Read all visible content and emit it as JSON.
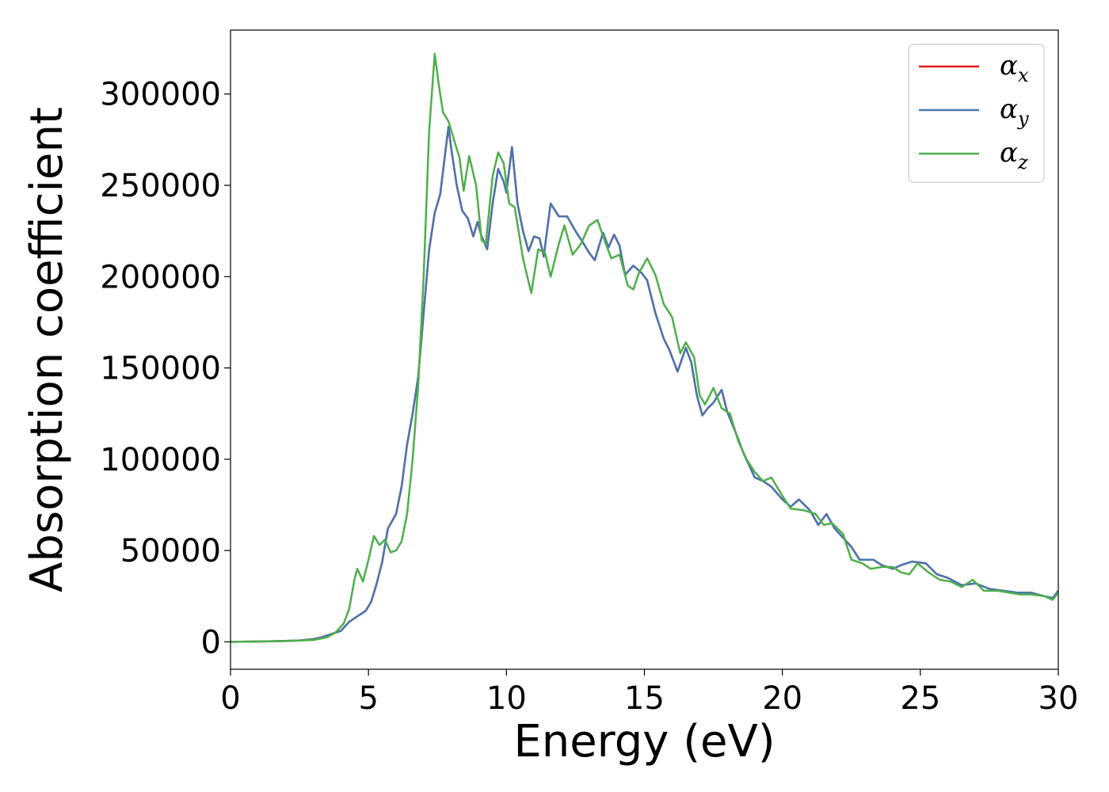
{
  "chart_data": {
    "type": "line",
    "title": "",
    "xlabel": "Energy (eV)",
    "ylabel": "Absorption coefficient",
    "xlim": [
      0,
      30
    ],
    "ylim": [
      -15000,
      335000
    ],
    "xticks": [
      0,
      5,
      10,
      15,
      20,
      25,
      30
    ],
    "yticks": [
      0,
      50000,
      100000,
      150000,
      200000,
      250000,
      300000
    ],
    "grid": false,
    "legend_position": "top-right",
    "series": [
      {
        "name": "α_x",
        "legend_base": "α",
        "legend_sub": "x",
        "color": "#e41a1c",
        "points": [
          [
            0,
            0
          ],
          [
            1,
            200
          ],
          [
            2,
            500
          ],
          [
            2.5,
            800
          ],
          [
            3,
            1500
          ],
          [
            3.3,
            2500
          ],
          [
            3.6,
            4000
          ],
          [
            4,
            6000
          ],
          [
            4.3,
            11000
          ],
          [
            4.6,
            14000
          ],
          [
            4.9,
            17000
          ],
          [
            5.1,
            22000
          ],
          [
            5.3,
            32000
          ],
          [
            5.5,
            44000
          ],
          [
            5.7,
            62000
          ],
          [
            6.0,
            70000
          ],
          [
            6.2,
            85000
          ],
          [
            6.4,
            108000
          ],
          [
            6.6,
            125000
          ],
          [
            6.8,
            145000
          ],
          [
            7.0,
            180000
          ],
          [
            7.2,
            215000
          ],
          [
            7.4,
            235000
          ],
          [
            7.6,
            245000
          ],
          [
            7.8,
            270000
          ],
          [
            7.9,
            282000
          ],
          [
            8.0,
            270000
          ],
          [
            8.2,
            250000
          ],
          [
            8.4,
            236000
          ],
          [
            8.6,
            232000
          ],
          [
            8.8,
            222000
          ],
          [
            8.95,
            230000
          ],
          [
            9.1,
            222000
          ],
          [
            9.3,
            215000
          ],
          [
            9.5,
            240000
          ],
          [
            9.7,
            259000
          ],
          [
            9.9,
            252000
          ],
          [
            10.0,
            246000
          ],
          [
            10.2,
            271000
          ],
          [
            10.4,
            240000
          ],
          [
            10.6,
            225000
          ],
          [
            10.8,
            214000
          ],
          [
            11.0,
            222000
          ],
          [
            11.2,
            221000
          ],
          [
            11.35,
            211000
          ],
          [
            11.6,
            240000
          ],
          [
            11.9,
            233000
          ],
          [
            12.2,
            233000
          ],
          [
            12.5,
            225000
          ],
          [
            12.8,
            218000
          ],
          [
            13.0,
            213000
          ],
          [
            13.2,
            209000
          ],
          [
            13.5,
            224000
          ],
          [
            13.7,
            216000
          ],
          [
            13.9,
            223000
          ],
          [
            14.1,
            217000
          ],
          [
            14.3,
            201000
          ],
          [
            14.6,
            206000
          ],
          [
            14.9,
            202000
          ],
          [
            15.1,
            198000
          ],
          [
            15.4,
            180000
          ],
          [
            15.7,
            166000
          ],
          [
            15.9,
            160000
          ],
          [
            16.2,
            148000
          ],
          [
            16.5,
            161000
          ],
          [
            16.7,
            153000
          ],
          [
            16.9,
            135000
          ],
          [
            17.1,
            124000
          ],
          [
            17.3,
            128000
          ],
          [
            17.5,
            131000
          ],
          [
            17.8,
            138000
          ],
          [
            18.0,
            126000
          ],
          [
            18.3,
            115000
          ],
          [
            18.6,
            103000
          ],
          [
            19.0,
            90000
          ],
          [
            19.3,
            88000
          ],
          [
            19.6,
            85000
          ],
          [
            20.0,
            78000
          ],
          [
            20.3,
            74000
          ],
          [
            20.6,
            78000
          ],
          [
            21.0,
            72000
          ],
          [
            21.3,
            64000
          ],
          [
            21.6,
            70000
          ],
          [
            21.9,
            62000
          ],
          [
            22.2,
            57000
          ],
          [
            22.5,
            52000
          ],
          [
            22.8,
            45000
          ],
          [
            23.3,
            45000
          ],
          [
            23.6,
            42000
          ],
          [
            24.0,
            40000
          ],
          [
            24.3,
            42000
          ],
          [
            24.7,
            44000
          ],
          [
            25.2,
            43000
          ],
          [
            25.6,
            37000
          ],
          [
            26.0,
            35000
          ],
          [
            26.5,
            31000
          ],
          [
            27.0,
            32000
          ],
          [
            27.5,
            29000
          ],
          [
            28.0,
            28000
          ],
          [
            28.5,
            27000
          ],
          [
            29.0,
            27000
          ],
          [
            29.5,
            25000
          ],
          [
            29.8,
            24000
          ],
          [
            30,
            28000
          ]
        ]
      },
      {
        "name": "α_y",
        "legend_base": "α",
        "legend_sub": "y",
        "color": "#4876b0",
        "points": [
          [
            0,
            0
          ],
          [
            1,
            200
          ],
          [
            2,
            500
          ],
          [
            2.5,
            800
          ],
          [
            3,
            1500
          ],
          [
            3.3,
            2500
          ],
          [
            3.6,
            4000
          ],
          [
            4,
            6000
          ],
          [
            4.3,
            11000
          ],
          [
            4.6,
            14000
          ],
          [
            4.9,
            17000
          ],
          [
            5.1,
            22000
          ],
          [
            5.3,
            32000
          ],
          [
            5.5,
            44000
          ],
          [
            5.7,
            62000
          ],
          [
            6.0,
            70000
          ],
          [
            6.2,
            85000
          ],
          [
            6.4,
            108000
          ],
          [
            6.6,
            125000
          ],
          [
            6.8,
            145000
          ],
          [
            7.0,
            180000
          ],
          [
            7.2,
            215000
          ],
          [
            7.4,
            235000
          ],
          [
            7.6,
            245000
          ],
          [
            7.8,
            270000
          ],
          [
            7.9,
            282000
          ],
          [
            8.0,
            270000
          ],
          [
            8.2,
            250000
          ],
          [
            8.4,
            236000
          ],
          [
            8.6,
            232000
          ],
          [
            8.8,
            222000
          ],
          [
            8.95,
            230000
          ],
          [
            9.1,
            222000
          ],
          [
            9.3,
            215000
          ],
          [
            9.5,
            240000
          ],
          [
            9.7,
            259000
          ],
          [
            9.9,
            252000
          ],
          [
            10.0,
            246000
          ],
          [
            10.2,
            271000
          ],
          [
            10.4,
            240000
          ],
          [
            10.6,
            225000
          ],
          [
            10.8,
            214000
          ],
          [
            11.0,
            222000
          ],
          [
            11.2,
            221000
          ],
          [
            11.35,
            211000
          ],
          [
            11.6,
            240000
          ],
          [
            11.9,
            233000
          ],
          [
            12.2,
            233000
          ],
          [
            12.5,
            225000
          ],
          [
            12.8,
            218000
          ],
          [
            13.0,
            213000
          ],
          [
            13.2,
            209000
          ],
          [
            13.5,
            224000
          ],
          [
            13.7,
            216000
          ],
          [
            13.9,
            223000
          ],
          [
            14.1,
            217000
          ],
          [
            14.3,
            201000
          ],
          [
            14.6,
            206000
          ],
          [
            14.9,
            202000
          ],
          [
            15.1,
            198000
          ],
          [
            15.4,
            180000
          ],
          [
            15.7,
            166000
          ],
          [
            15.9,
            160000
          ],
          [
            16.2,
            148000
          ],
          [
            16.5,
            161000
          ],
          [
            16.7,
            153000
          ],
          [
            16.9,
            135000
          ],
          [
            17.1,
            124000
          ],
          [
            17.3,
            128000
          ],
          [
            17.5,
            131000
          ],
          [
            17.8,
            138000
          ],
          [
            18.0,
            126000
          ],
          [
            18.3,
            115000
          ],
          [
            18.6,
            103000
          ],
          [
            19.0,
            90000
          ],
          [
            19.3,
            88000
          ],
          [
            19.6,
            85000
          ],
          [
            20.0,
            78000
          ],
          [
            20.3,
            74000
          ],
          [
            20.6,
            78000
          ],
          [
            21.0,
            72000
          ],
          [
            21.3,
            64000
          ],
          [
            21.6,
            70000
          ],
          [
            21.9,
            62000
          ],
          [
            22.2,
            57000
          ],
          [
            22.5,
            52000
          ],
          [
            22.8,
            45000
          ],
          [
            23.3,
            45000
          ],
          [
            23.6,
            42000
          ],
          [
            24.0,
            40000
          ],
          [
            24.3,
            42000
          ],
          [
            24.7,
            44000
          ],
          [
            25.2,
            43000
          ],
          [
            25.6,
            37000
          ],
          [
            26.0,
            35000
          ],
          [
            26.5,
            31000
          ],
          [
            27.0,
            32000
          ],
          [
            27.5,
            29000
          ],
          [
            28.0,
            28000
          ],
          [
            28.5,
            27000
          ],
          [
            29.0,
            27000
          ],
          [
            29.5,
            25000
          ],
          [
            29.8,
            24000
          ],
          [
            30,
            28000
          ]
        ]
      },
      {
        "name": "α_z",
        "legend_base": "α",
        "legend_sub": "z",
        "color": "#4daf4a",
        "points": [
          [
            0,
            0
          ],
          [
            1,
            200
          ],
          [
            2,
            400
          ],
          [
            3,
            1000
          ],
          [
            3.5,
            2500
          ],
          [
            3.8,
            5000
          ],
          [
            4.1,
            10000
          ],
          [
            4.3,
            18000
          ],
          [
            4.5,
            35000
          ],
          [
            4.6,
            40000
          ],
          [
            4.8,
            33000
          ],
          [
            5.0,
            45000
          ],
          [
            5.2,
            58000
          ],
          [
            5.4,
            53000
          ],
          [
            5.6,
            56000
          ],
          [
            5.8,
            49000
          ],
          [
            6.0,
            50000
          ],
          [
            6.2,
            55000
          ],
          [
            6.4,
            70000
          ],
          [
            6.6,
            100000
          ],
          [
            6.8,
            140000
          ],
          [
            7.0,
            200000
          ],
          [
            7.2,
            280000
          ],
          [
            7.4,
            322000
          ],
          [
            7.55,
            305000
          ],
          [
            7.7,
            290000
          ],
          [
            7.9,
            285000
          ],
          [
            8.1,
            275000
          ],
          [
            8.3,
            265000
          ],
          [
            8.45,
            247000
          ],
          [
            8.65,
            266000
          ],
          [
            8.9,
            250000
          ],
          [
            9.1,
            220000
          ],
          [
            9.25,
            218000
          ],
          [
            9.5,
            255000
          ],
          [
            9.7,
            268000
          ],
          [
            9.9,
            262000
          ],
          [
            10.1,
            240000
          ],
          [
            10.3,
            238000
          ],
          [
            10.6,
            210000
          ],
          [
            10.9,
            191000
          ],
          [
            11.15,
            215000
          ],
          [
            11.4,
            213000
          ],
          [
            11.6,
            200000
          ],
          [
            11.9,
            218000
          ],
          [
            12.1,
            228000
          ],
          [
            12.4,
            212000
          ],
          [
            12.7,
            218000
          ],
          [
            13.0,
            228000
          ],
          [
            13.3,
            231000
          ],
          [
            13.6,
            218000
          ],
          [
            13.8,
            210000
          ],
          [
            14.1,
            212000
          ],
          [
            14.4,
            195000
          ],
          [
            14.6,
            193000
          ],
          [
            14.8,
            202000
          ],
          [
            15.1,
            210000
          ],
          [
            15.4,
            201000
          ],
          [
            15.7,
            185000
          ],
          [
            16.0,
            178000
          ],
          [
            16.3,
            158000
          ],
          [
            16.5,
            164000
          ],
          [
            16.8,
            156000
          ],
          [
            17.0,
            135000
          ],
          [
            17.2,
            130000
          ],
          [
            17.5,
            139000
          ],
          [
            17.8,
            128000
          ],
          [
            18.1,
            125000
          ],
          [
            18.4,
            110000
          ],
          [
            18.7,
            100000
          ],
          [
            19.0,
            93000
          ],
          [
            19.3,
            88000
          ],
          [
            19.6,
            90000
          ],
          [
            20.0,
            80000
          ],
          [
            20.3,
            73000
          ],
          [
            20.8,
            72000
          ],
          [
            21.2,
            70000
          ],
          [
            21.5,
            64000
          ],
          [
            21.8,
            65000
          ],
          [
            22.2,
            59000
          ],
          [
            22.5,
            45000
          ],
          [
            22.9,
            43000
          ],
          [
            23.2,
            40000
          ],
          [
            23.6,
            41000
          ],
          [
            24.0,
            41000
          ],
          [
            24.3,
            38000
          ],
          [
            24.6,
            37000
          ],
          [
            24.9,
            43000
          ],
          [
            25.3,
            38000
          ],
          [
            25.7,
            34000
          ],
          [
            26.1,
            33000
          ],
          [
            26.5,
            30000
          ],
          [
            26.9,
            34000
          ],
          [
            27.3,
            28000
          ],
          [
            27.8,
            28000
          ],
          [
            28.2,
            27000
          ],
          [
            28.6,
            26000
          ],
          [
            29.0,
            26000
          ],
          [
            29.5,
            25000
          ],
          [
            29.8,
            23000
          ],
          [
            30,
            27000
          ]
        ]
      }
    ]
  }
}
